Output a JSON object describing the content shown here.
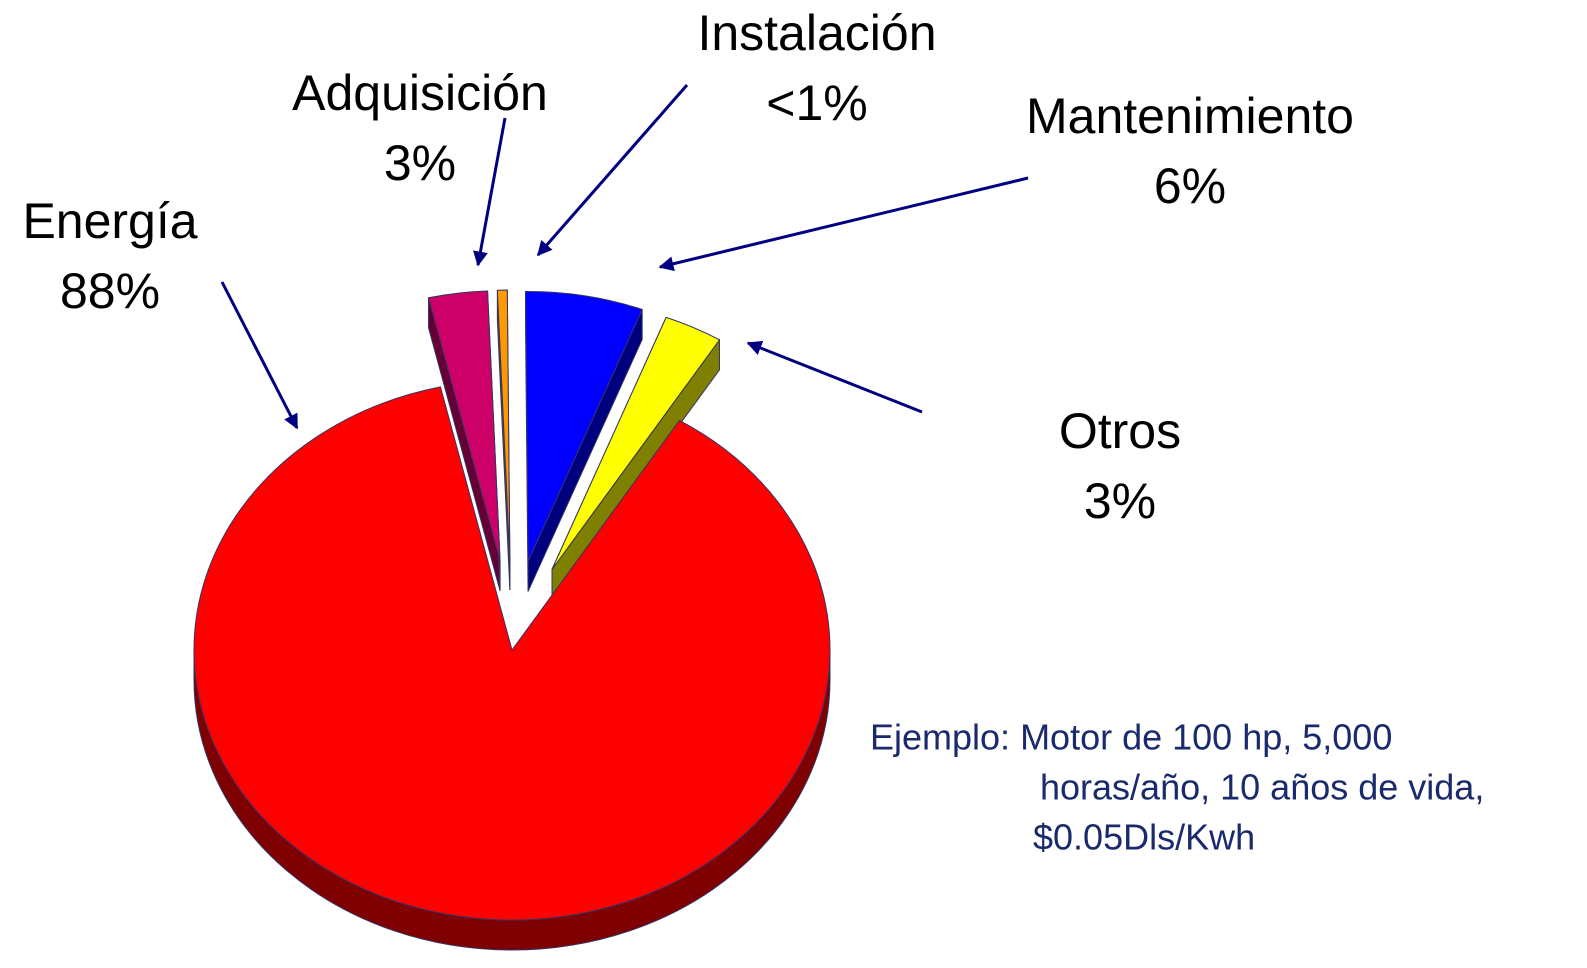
{
  "chart_data": {
    "type": "pie",
    "labels": [
      "Adquisición",
      "Instalación",
      "Mantenimiento",
      "Otros",
      "Energía"
    ],
    "values": [
      3,
      0.5,
      6,
      3,
      88
    ],
    "value_labels": [
      "3%",
      "<1%",
      "6%",
      "3%",
      "88%"
    ],
    "colors": [
      "#cc0066",
      "#ff9900",
      "#0000ff",
      "#ffff00",
      "#ff0000"
    ],
    "annotation": [
      "Ejemplo: Motor de 100 hp, 5,000",
      "horas/año, 10 años de vida,",
      "$0.05Dls/Kwh"
    ]
  }
}
